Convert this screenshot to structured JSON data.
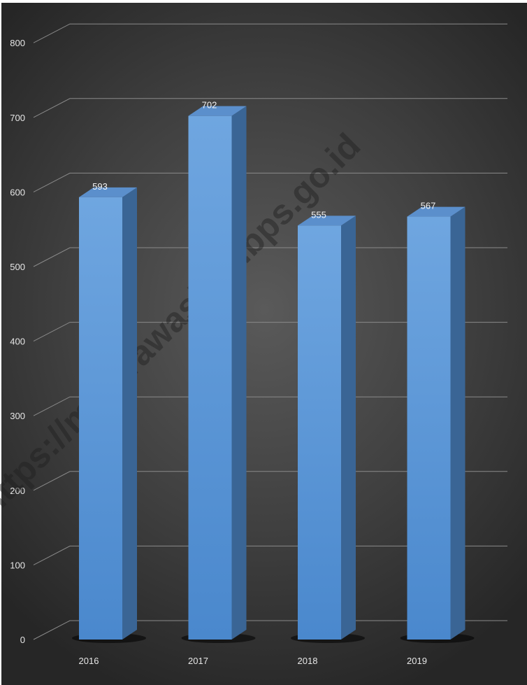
{
  "chart_data": {
    "type": "bar",
    "categories": [
      "2016",
      "2017",
      "2018",
      "2019"
    ],
    "values": [
      593,
      702,
      555,
      567
    ],
    "data_labels": [
      "593",
      "702",
      "555",
      "567"
    ],
    "title": "",
    "xlabel": "",
    "ylabel": "",
    "ylim": [
      0,
      800
    ],
    "yticks": [
      "0",
      "100",
      "200",
      "300",
      "400",
      "500",
      "600",
      "700",
      "800"
    ],
    "grid": true,
    "legend": "none",
    "style": "3d-column",
    "colors": {
      "bar_front_top": "#6fa6e0",
      "bar_front_bottom": "#4a88cd",
      "bar_side": "#3a6595",
      "bar_top": "#5b8fcc",
      "gridline": "#8a8a8a",
      "background": "#404040"
    }
  },
  "watermark": "https://musirawaskab.bps.go.id"
}
